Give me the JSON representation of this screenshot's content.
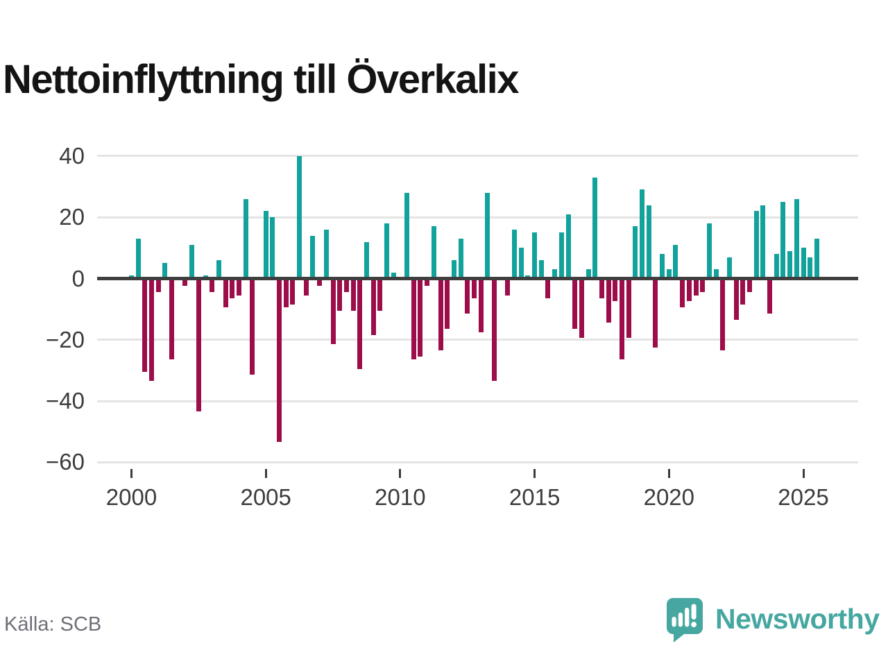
{
  "title": "Nettoinflyttning till Överkalix",
  "source": "Källa: SCB",
  "branding": {
    "name": "Newsworthy",
    "logo_icon": "speech-bubble-bar-chart-exclamation",
    "color": "#46a7a1"
  },
  "colors": {
    "positive_bar": "#11a29b",
    "negative_bar": "#9c0d49",
    "gridline": "#e4e4e4",
    "zero_line": "#3f3f3f",
    "axis_text": "#3c3c3c",
    "title_text": "#141414",
    "source_text": "#6f6f79"
  },
  "chart_data": {
    "type": "bar",
    "title": "Nettoinflyttning till Överkalix",
    "frequency": "quarterly",
    "x_start": "2000 Q1",
    "x_end": "2025 Q3",
    "xlabel": "",
    "ylabel": "",
    "ylim": [
      -60,
      45
    ],
    "grid": "horizontal",
    "legend": "none",
    "y_ticks": [
      40,
      20,
      0,
      -20,
      -40,
      -60
    ],
    "y_tick_labels": [
      "40",
      "20",
      "0",
      "−20",
      "−40",
      "−60"
    ],
    "x_ticks": [
      2000,
      2005,
      2010,
      2015,
      2020,
      2025
    ],
    "x_tick_labels": [
      "2000",
      "2005",
      "2010",
      "2015",
      "2020",
      "2025"
    ],
    "positive_color": "#11a29b",
    "negative_color": "#9c0d49",
    "values_by_year": {
      "2000": [
        1,
        13,
        -30,
        -33
      ],
      "2001": [
        -4,
        5,
        -26,
        0
      ],
      "2002": [
        -2,
        11,
        -43,
        1
      ],
      "2003": [
        -4,
        6,
        -9,
        -6
      ],
      "2004": [
        -5,
        26,
        -31,
        0
      ],
      "2005": [
        22,
        20,
        -53,
        -9
      ],
      "2006": [
        -8,
        40,
        -5,
        14
      ],
      "2007": [
        -2,
        16,
        -21,
        -10
      ],
      "2008": [
        -4,
        -10,
        -29,
        12
      ],
      "2009": [
        -18,
        -10,
        18,
        2
      ],
      "2010": [
        0,
        28,
        -26,
        -25
      ],
      "2011": [
        -2,
        17,
        -23,
        -16
      ],
      "2012": [
        6,
        13,
        -11,
        -6
      ],
      "2013": [
        -17,
        28,
        -33,
        0
      ],
      "2014": [
        -5,
        16,
        10,
        1
      ],
      "2015": [
        15,
        6,
        -6,
        3
      ],
      "2016": [
        15,
        21,
        -16,
        -19
      ],
      "2017": [
        3,
        33,
        -6,
        -14
      ],
      "2018": [
        -7,
        -26,
        -19,
        17
      ],
      "2019": [
        29,
        24,
        -22,
        8
      ],
      "2020": [
        3,
        11,
        -9,
        -7
      ],
      "2021": [
        -5,
        -4,
        18,
        3
      ],
      "2022": [
        -23,
        7,
        -13,
        -8
      ],
      "2023": [
        -4,
        22,
        24,
        -11
      ],
      "2024": [
        8,
        25,
        9,
        26
      ],
      "2025": [
        10,
        7,
        13
      ]
    }
  }
}
